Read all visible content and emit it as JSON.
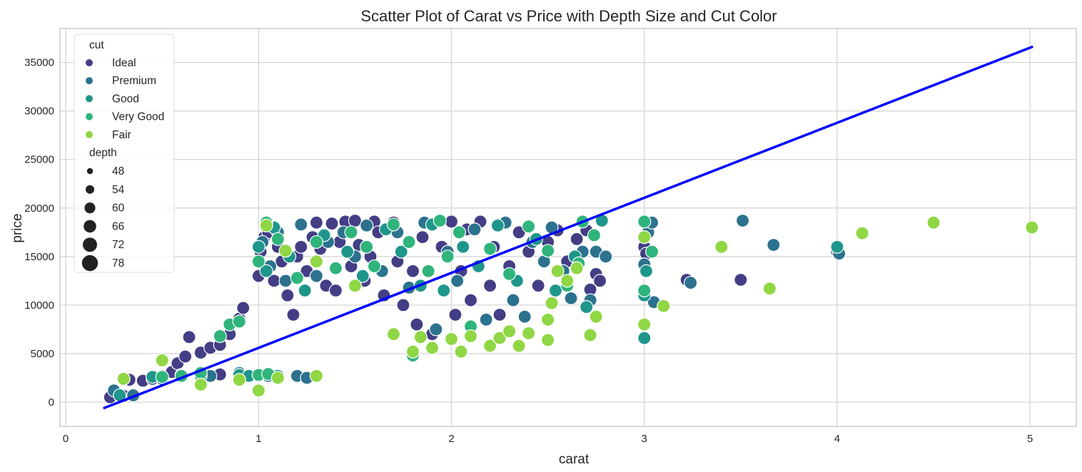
{
  "chart_data": {
    "type": "scatter",
    "title": "Scatter Plot of Carat vs Price with Depth Size and Cut Color",
    "xlabel": "carat",
    "ylabel": "price",
    "xlim": [
      -0.03,
      5.24
    ],
    "ylim": [
      -2500,
      38500
    ],
    "xticks": [
      0,
      1,
      2,
      3,
      4,
      5
    ],
    "yticks": [
      0,
      5000,
      10000,
      15000,
      20000,
      25000,
      30000,
      35000
    ],
    "grid": true,
    "legend_position": "top-left",
    "hue": {
      "title": "cut",
      "entries": [
        {
          "name": "Ideal",
          "color": "#433e85"
        },
        {
          "name": "Premium",
          "color": "#2c728e"
        },
        {
          "name": "Good",
          "color": "#1f968b"
        },
        {
          "name": "Very Good",
          "color": "#2fb47c"
        },
        {
          "name": "Fair",
          "color": "#8fd744"
        }
      ]
    },
    "size": {
      "title": "depth",
      "entries": [
        {
          "label": "48",
          "value": 48
        },
        {
          "label": "54",
          "value": 54
        },
        {
          "label": "60",
          "value": 60
        },
        {
          "label": "66",
          "value": 66
        },
        {
          "label": "72",
          "value": 72
        },
        {
          "label": "78",
          "value": 78
        }
      ]
    },
    "regression_line": {
      "color": "#0000ff",
      "x": [
        0.2,
        5.01
      ],
      "y": [
        -600,
        36600
      ]
    },
    "series": [
      {
        "name": "Ideal",
        "color": "#433e85",
        "points": [
          [
            0.23,
            500
          ],
          [
            0.3,
            650
          ],
          [
            0.33,
            2300
          ],
          [
            0.4,
            2200
          ],
          [
            0.45,
            2400
          ],
          [
            0.5,
            2700
          ],
          [
            0.55,
            3100
          ],
          [
            0.58,
            4000
          ],
          [
            0.62,
            4700
          ],
          [
            0.64,
            6700
          ],
          [
            0.7,
            5100
          ],
          [
            0.75,
            5600
          ],
          [
            0.8,
            5900
          ],
          [
            0.85,
            7000
          ],
          [
            0.9,
            8600
          ],
          [
            0.92,
            9700
          ],
          [
            0.7,
            2800
          ],
          [
            0.9,
            2800
          ],
          [
            0.8,
            2850
          ],
          [
            1.0,
            13000
          ],
          [
            1.01,
            15500
          ],
          [
            1.03,
            17000
          ],
          [
            1.05,
            17500
          ],
          [
            1.08,
            12500
          ],
          [
            1.1,
            16000
          ],
          [
            1.12,
            14500
          ],
          [
            1.15,
            11000
          ],
          [
            1.18,
            9000
          ],
          [
            1.2,
            15000
          ],
          [
            1.22,
            16000
          ],
          [
            1.25,
            13500
          ],
          [
            1.28,
            17000
          ],
          [
            1.3,
            18500
          ],
          [
            1.32,
            15800
          ],
          [
            1.35,
            12000
          ],
          [
            1.38,
            18400
          ],
          [
            1.4,
            11500
          ],
          [
            1.42,
            16500
          ],
          [
            1.45,
            18600
          ],
          [
            1.48,
            14000
          ],
          [
            1.5,
            18700
          ],
          [
            1.52,
            16200
          ],
          [
            1.55,
            12500
          ],
          [
            1.58,
            15000
          ],
          [
            1.6,
            18600
          ],
          [
            1.62,
            17500
          ],
          [
            1.65,
            11000
          ],
          [
            1.7,
            18500
          ],
          [
            1.72,
            14500
          ],
          [
            1.75,
            10000
          ],
          [
            1.8,
            13500
          ],
          [
            1.82,
            8000
          ],
          [
            1.85,
            17000
          ],
          [
            1.9,
            7000
          ],
          [
            1.95,
            16000
          ],
          [
            2.0,
            18600
          ],
          [
            2.02,
            9000
          ],
          [
            2.05,
            13500
          ],
          [
            2.08,
            17800
          ],
          [
            2.1,
            10500
          ],
          [
            2.15,
            18600
          ],
          [
            2.2,
            12000
          ],
          [
            2.22,
            16000
          ],
          [
            2.25,
            9000
          ],
          [
            2.3,
            14000
          ],
          [
            2.35,
            17500
          ],
          [
            2.4,
            15500
          ],
          [
            2.45,
            12000
          ],
          [
            2.5,
            16500
          ],
          [
            2.55,
            17700
          ],
          [
            2.6,
            14500
          ],
          [
            2.65,
            16800
          ],
          [
            2.7,
            17700
          ],
          [
            2.72,
            11600
          ],
          [
            2.75,
            13200
          ],
          [
            2.77,
            12500
          ],
          [
            3.0,
            16000
          ],
          [
            3.01,
            15300
          ],
          [
            3.22,
            12600
          ],
          [
            3.5,
            12600
          ]
        ]
      },
      {
        "name": "Premium",
        "color": "#2c728e",
        "points": [
          [
            0.25,
            1200
          ],
          [
            0.35,
            700
          ],
          [
            0.5,
            2400
          ],
          [
            0.6,
            2800
          ],
          [
            0.75,
            2700
          ],
          [
            0.9,
            3000
          ],
          [
            1.05,
            2700
          ],
          [
            1.1,
            2600
          ],
          [
            1.2,
            2700
          ],
          [
            1.25,
            2500
          ],
          [
            1.02,
            16500
          ],
          [
            1.06,
            14000
          ],
          [
            1.1,
            17500
          ],
          [
            1.14,
            12500
          ],
          [
            1.22,
            18300
          ],
          [
            1.3,
            13000
          ],
          [
            1.36,
            16500
          ],
          [
            1.44,
            17500
          ],
          [
            1.5,
            15000
          ],
          [
            1.56,
            18200
          ],
          [
            1.64,
            13500
          ],
          [
            1.72,
            17500
          ],
          [
            1.78,
            11800
          ],
          [
            1.86,
            18500
          ],
          [
            1.92,
            7500
          ],
          [
            1.98,
            15500
          ],
          [
            2.03,
            12500
          ],
          [
            2.12,
            17800
          ],
          [
            2.18,
            8500
          ],
          [
            2.28,
            18500
          ],
          [
            2.32,
            10500
          ],
          [
            2.38,
            8800
          ],
          [
            2.42,
            16500
          ],
          [
            2.48,
            14500
          ],
          [
            2.52,
            18000
          ],
          [
            2.58,
            13500
          ],
          [
            2.62,
            10700
          ],
          [
            2.68,
            15500
          ],
          [
            2.72,
            10500
          ],
          [
            2.75,
            15500
          ],
          [
            2.8,
            15000
          ],
          [
            3.0,
            18500
          ],
          [
            3.02,
            17500
          ],
          [
            3.04,
            18500
          ],
          [
            3.05,
            10300
          ],
          [
            3.0,
            14200
          ],
          [
            3.24,
            12300
          ],
          [
            3.51,
            18700
          ],
          [
            3.67,
            16200
          ],
          [
            4.0,
            15500
          ],
          [
            4.01,
            15300
          ]
        ]
      },
      {
        "name": "Good",
        "color": "#1f968b",
        "points": [
          [
            0.28,
            700
          ],
          [
            0.45,
            2600
          ],
          [
            0.7,
            2700
          ],
          [
            0.9,
            2800
          ],
          [
            0.95,
            2700
          ],
          [
            1.0,
            2800
          ],
          [
            1.1,
            2700
          ],
          [
            1.0,
            16000
          ],
          [
            1.04,
            13500
          ],
          [
            1.08,
            18000
          ],
          [
            1.16,
            15000
          ],
          [
            1.24,
            11500
          ],
          [
            1.34,
            17200
          ],
          [
            1.46,
            15500
          ],
          [
            1.54,
            13000
          ],
          [
            1.66,
            17800
          ],
          [
            1.74,
            15500
          ],
          [
            1.84,
            12000
          ],
          [
            1.9,
            18300
          ],
          [
            1.96,
            11500
          ],
          [
            2.06,
            16000
          ],
          [
            2.14,
            14000
          ],
          [
            2.24,
            18200
          ],
          [
            2.34,
            12500
          ],
          [
            2.44,
            16800
          ],
          [
            2.54,
            11500
          ],
          [
            2.64,
            15000
          ],
          [
            2.7,
            9800
          ],
          [
            2.78,
            18700
          ],
          [
            3.0,
            11000
          ],
          [
            3.0,
            6600
          ],
          [
            3.01,
            13500
          ],
          [
            4.0,
            16000
          ]
        ]
      },
      {
        "name": "Very Good",
        "color": "#2fb47c",
        "points": [
          [
            0.3,
            2400
          ],
          [
            0.5,
            2600
          ],
          [
            0.6,
            2700
          ],
          [
            0.7,
            3000
          ],
          [
            0.8,
            6800
          ],
          [
            0.85,
            8000
          ],
          [
            0.9,
            8300
          ],
          [
            1.0,
            2800
          ],
          [
            1.05,
            2900
          ],
          [
            1.0,
            14500
          ],
          [
            1.04,
            18500
          ],
          [
            1.1,
            16800
          ],
          [
            1.2,
            12800
          ],
          [
            1.3,
            16500
          ],
          [
            1.4,
            13800
          ],
          [
            1.48,
            17500
          ],
          [
            1.56,
            16000
          ],
          [
            1.6,
            14000
          ],
          [
            1.7,
            18300
          ],
          [
            1.78,
            16500
          ],
          [
            1.8,
            4800
          ],
          [
            1.88,
            13500
          ],
          [
            1.94,
            18700
          ],
          [
            1.98,
            15000
          ],
          [
            2.04,
            17500
          ],
          [
            2.1,
            7800
          ],
          [
            2.2,
            15800
          ],
          [
            2.3,
            13200
          ],
          [
            2.4,
            18100
          ],
          [
            2.5,
            15600
          ],
          [
            2.6,
            12000
          ],
          [
            2.66,
            14300
          ],
          [
            2.68,
            18600
          ],
          [
            2.74,
            17200
          ],
          [
            3.0,
            18600
          ],
          [
            3.0,
            11500
          ],
          [
            3.04,
            15500
          ]
        ]
      },
      {
        "name": "Fair",
        "color": "#8fd744",
        "points": [
          [
            0.3,
            2400
          ],
          [
            0.5,
            4300
          ],
          [
            0.7,
            1800
          ],
          [
            0.9,
            2300
          ],
          [
            1.0,
            1200
          ],
          [
            1.1,
            2500
          ],
          [
            1.3,
            2700
          ],
          [
            1.04,
            18200
          ],
          [
            1.14,
            15600
          ],
          [
            1.3,
            14500
          ],
          [
            1.5,
            12000
          ],
          [
            1.7,
            7000
          ],
          [
            1.8,
            5200
          ],
          [
            1.84,
            6700
          ],
          [
            1.9,
            5600
          ],
          [
            2.0,
            6500
          ],
          [
            2.05,
            5200
          ],
          [
            2.1,
            6800
          ],
          [
            2.2,
            5800
          ],
          [
            2.25,
            6600
          ],
          [
            2.3,
            7300
          ],
          [
            2.35,
            5800
          ],
          [
            2.4,
            7100
          ],
          [
            2.5,
            6400
          ],
          [
            2.5,
            8500
          ],
          [
            2.52,
            10200
          ],
          [
            2.55,
            13500
          ],
          [
            2.6,
            12500
          ],
          [
            2.65,
            13800
          ],
          [
            2.72,
            6900
          ],
          [
            2.75,
            8800
          ],
          [
            3.0,
            17000
          ],
          [
            3.0,
            8000
          ],
          [
            3.1,
            9900
          ],
          [
            3.4,
            16000
          ],
          [
            3.65,
            11700
          ],
          [
            4.13,
            17400
          ],
          [
            4.5,
            18500
          ],
          [
            5.01,
            18000
          ]
        ]
      }
    ]
  }
}
